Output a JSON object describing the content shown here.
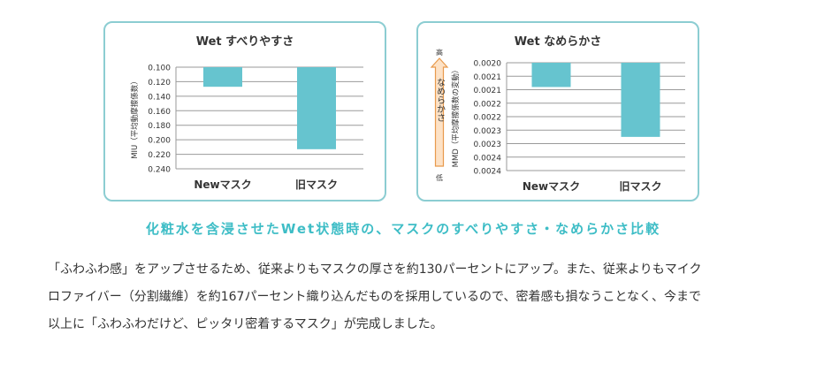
{
  "chart_data": [
    {
      "type": "bar",
      "title": "Wet すべりやすさ",
      "ylabel": "MIU（平均動摩擦係数）",
      "categories": [
        "Newマスク",
        "旧マスク"
      ],
      "values": [
        0.127,
        0.213
      ],
      "ylim": [
        0.1,
        0.24
      ],
      "y_inverted": true,
      "yticks": [
        "0.100",
        "0.120",
        "0.140",
        "0.160",
        "0.180",
        "0.200",
        "0.220",
        "0.240"
      ],
      "grid": true,
      "bar_color": "#66c4cf"
    },
    {
      "type": "bar",
      "title": "Wet なめらかさ",
      "ylabel": "MMD（平均摩擦係数の変動）",
      "categories": [
        "Newマスク",
        "旧マスク"
      ],
      "values": [
        0.00209,
        0.002275
      ],
      "ylim": [
        0.002,
        0.0024
      ],
      "y_inverted": true,
      "yticks": [
        "0.0020",
        "0.0021",
        "0.0021",
        "0.0022",
        "0.0022",
        "0.0023",
        "0.0023",
        "0.0024",
        "0.0024"
      ],
      "grid": true,
      "bar_color": "#66c4cf",
      "arrow": {
        "top": "高",
        "label": "なめらかさ",
        "bottom": "低"
      }
    }
  ],
  "caption": "化粧水を含浸させたWet状態時の、マスクのすべりやすさ・なめらかさ比較",
  "body_lines": [
    "「ふわふわ感」をアップさせるため、従来よりもマスクの厚さを約130パーセントにアップ。また、従来よりもマイク",
    "ロファイバー（分割繊維）を約167パーセント織り込んだものを採用しているので、密着感も損なうことなく、今まで",
    "以上に「ふわふわだけど、ピッタリ密着するマスク」が完成しました。"
  ]
}
